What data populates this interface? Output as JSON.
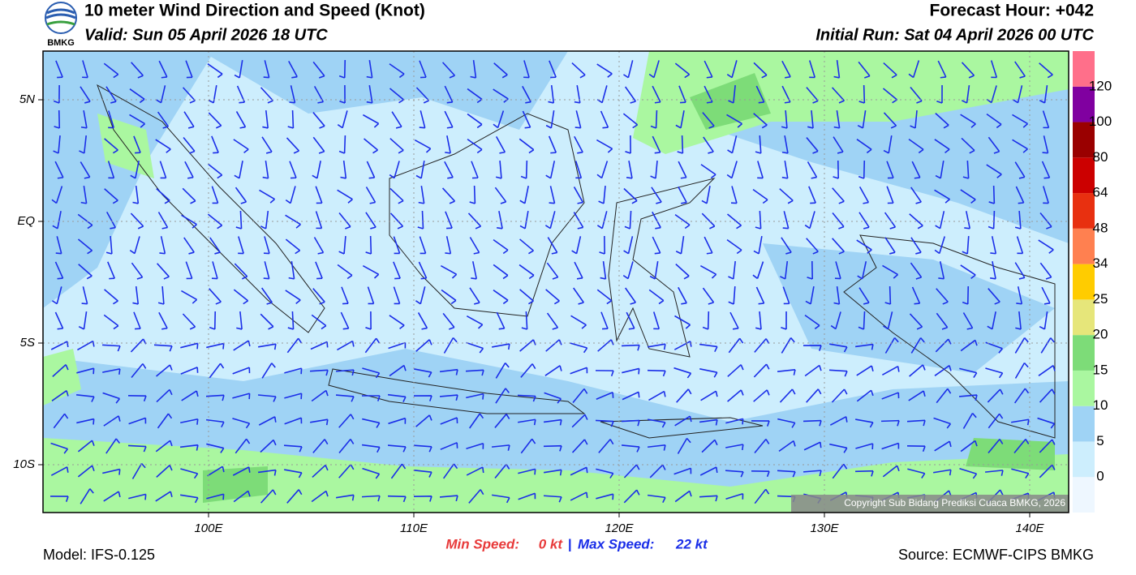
{
  "header": {
    "title": "10 meter Wind Direction and Speed (Knot)",
    "valid": "Valid: Sun 05 April 2026 18 UTC",
    "forecast_hour": "Forecast Hour: +042",
    "initial_run": "Initial Run: Sat 04 April 2026 00 UTC",
    "logo": "BMKG"
  },
  "map": {
    "lat_ticks": [
      {
        "value": 5,
        "label": "5N"
      },
      {
        "value": 0,
        "label": "EQ"
      },
      {
        "value": -5,
        "label": "5S"
      },
      {
        "value": -10,
        "label": "10S"
      }
    ],
    "lon_ticks": [
      {
        "value": 100,
        "label": "100E"
      },
      {
        "value": 110,
        "label": "110E"
      },
      {
        "value": 120,
        "label": "120E"
      },
      {
        "value": 130,
        "label": "130E"
      },
      {
        "value": 140,
        "label": "140E"
      }
    ],
    "copyright": "Copyright Sub Bidang Prediksi Cuaca BMKG, 2026"
  },
  "legend": {
    "labels": [
      "0",
      "5",
      "10",
      "15",
      "20",
      "25",
      "34",
      "48",
      "64",
      "80",
      "100",
      "120"
    ],
    "colors": [
      "#eef7ff",
      "#cdeefd",
      "#9fd3f5",
      "#aaf7a0",
      "#7ddc78",
      "#e6e67a",
      "#ffcc00",
      "#ff8050",
      "#e83010",
      "#cc0000",
      "#9a0000",
      "#8000a0",
      "#ff6f8a"
    ]
  },
  "footer": {
    "model": "Model: IFS-0.125",
    "source": "Source: ECMWF-CIPS BMKG",
    "min_label": "Min Speed:",
    "min_value": "0 kt",
    "separator": "|",
    "max_label": "Max Speed:",
    "max_value": "22 kt"
  }
}
